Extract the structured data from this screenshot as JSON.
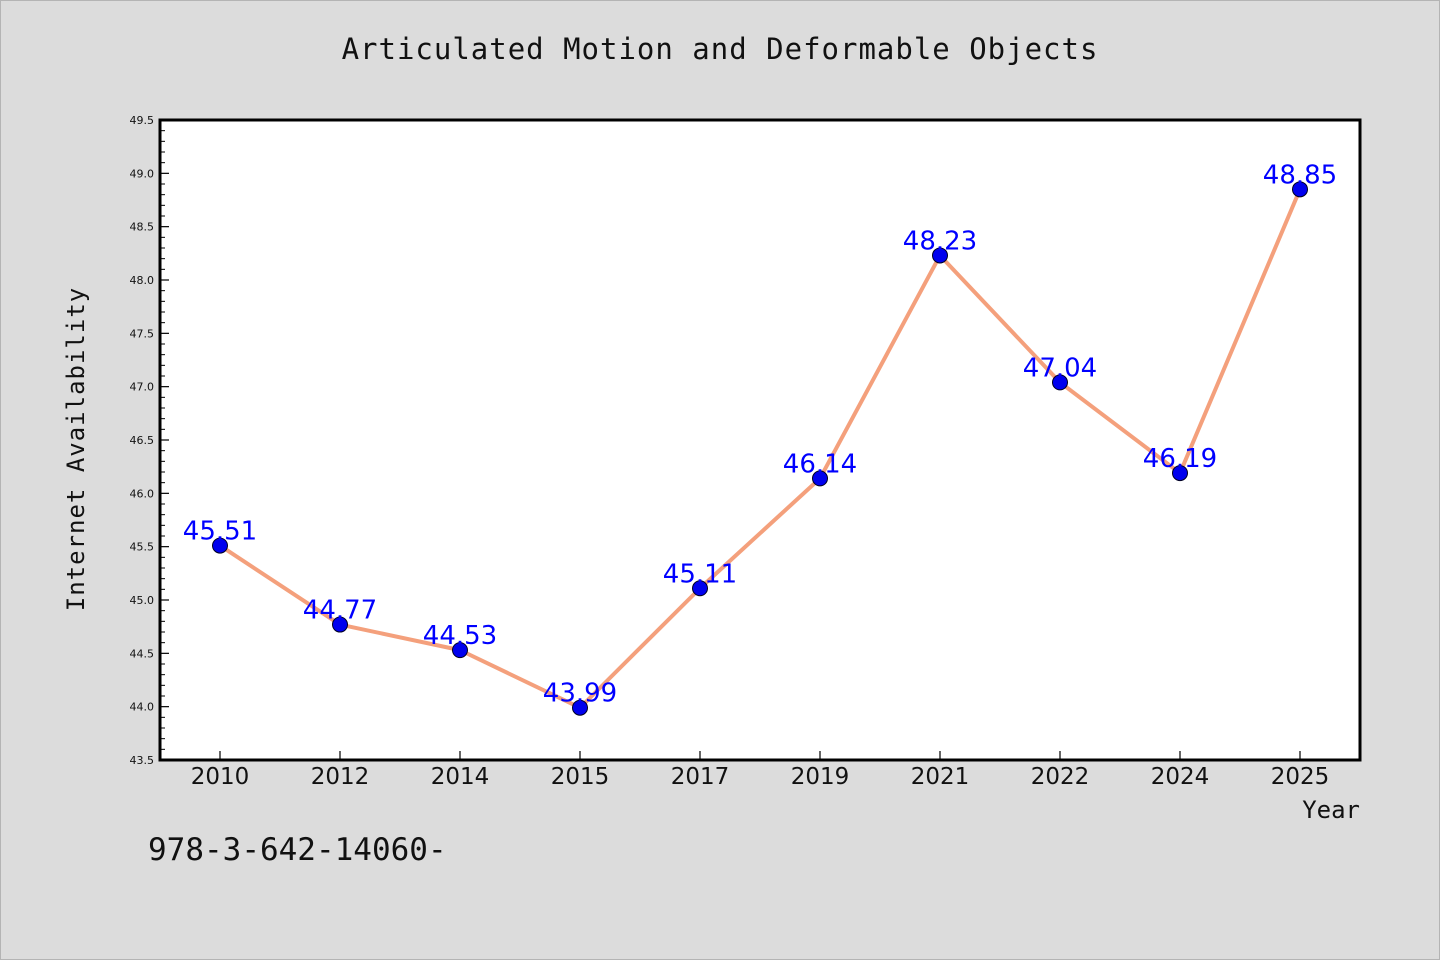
{
  "chart_data": {
    "type": "line",
    "title": "Articulated Motion and Deformable Objects",
    "xlabel": "Year",
    "ylabel": "Internet Availability",
    "categories": [
      "2010",
      "2012",
      "2014",
      "2015",
      "2017",
      "2019",
      "2021",
      "2022",
      "2024",
      "2025"
    ],
    "series": [
      {
        "values": [
          45.51,
          44.77,
          44.53,
          43.99,
          45.11,
          46.14,
          48.23,
          47.04,
          46.19,
          48.85
        ],
        "data_labels": [
          "45.51",
          "44.77",
          "44.53",
          "43.99",
          "45.11",
          "46.14",
          "48.23",
          "47.04",
          "46.19",
          "48.85"
        ],
        "line_color": "#f4a07c",
        "marker_color": "#0000ee",
        "label_color": "#0000ff"
      }
    ],
    "ylim": [
      43.5,
      49.5
    ],
    "y_ticks": [
      "43.5",
      "44.0",
      "44.5",
      "45.0",
      "45.5",
      "46.0",
      "46.5",
      "47.0",
      "47.5",
      "48.0",
      "48.5",
      "49.0",
      "49.5"
    ],
    "grid": false,
    "legend": "none"
  },
  "footnote": "978-3-642-14060-",
  "colors": {
    "background": "#dcdcdc",
    "plot_area": "#ffffff",
    "axis": "#000000"
  }
}
